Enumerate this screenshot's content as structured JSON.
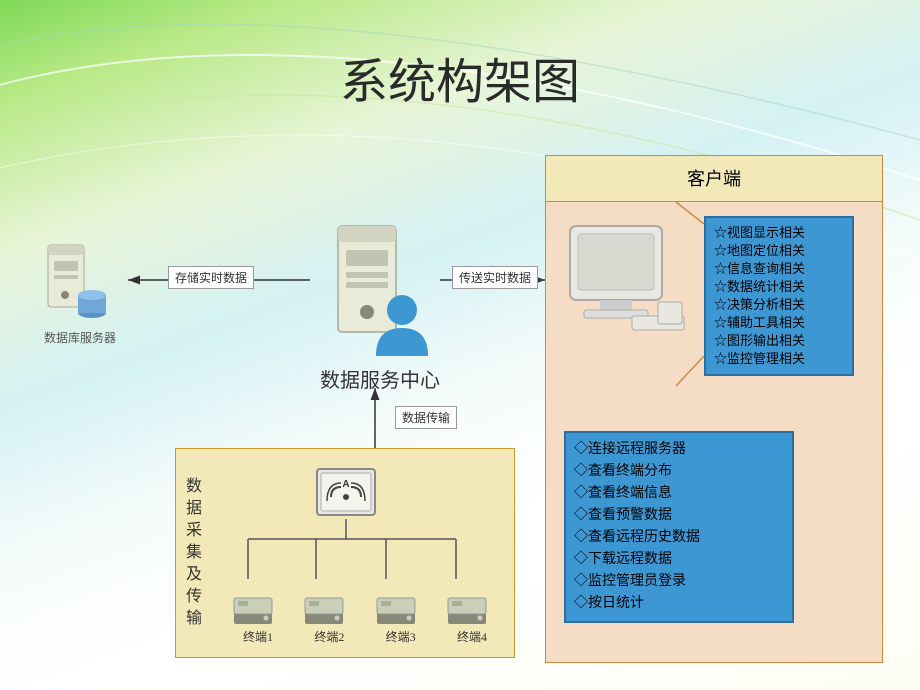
{
  "type": "network",
  "title": "系统构架图",
  "background": {
    "gradient_colors": [
      "#7ed957",
      "#b8e986",
      "#e8f5d8",
      "#d4f1f4",
      "#f5fcfa",
      "#ffffff"
    ],
    "curve_colors": [
      "#ffffff",
      "#c8e8a0",
      "#a0d8c0"
    ]
  },
  "nodes": {
    "db_server": {
      "label": "数据库服务器",
      "label_fontsize": 12
    },
    "service_center": {
      "label": "数据服务中心",
      "label_fontsize": 20
    },
    "collection_box": {
      "title": "数据采集及传输",
      "bg_color": "#f3e8b8",
      "border_color": "#c89828",
      "router_label": "A",
      "terminals": [
        "终端1",
        "终端2",
        "终端3",
        "终端4"
      ]
    },
    "client_box": {
      "title": "客户端",
      "bg_color": "#f4ddc4",
      "header_bg": "#f3e8b8",
      "border_color": "#d08840",
      "panel_a": {
        "bg_color": "#3d97d3",
        "border_color": "#2b6fa0",
        "bullet": "☆",
        "items": [
          "视图显示相关",
          "地图定位相关",
          "信息查询相关",
          "数据统计相关",
          "决策分析相关",
          "辅助工具相关",
          "图形输出相关",
          "监控管理相关"
        ]
      },
      "panel_b": {
        "bg_color": "#3d97d3",
        "border_color": "#2b6fa0",
        "bullet": "◇",
        "items": [
          "连接远程服务器",
          "查看终端分布",
          "查看终端信息",
          "查看预警数据",
          "查看远程历史数据",
          "下载远程数据",
          "监控管理员登录",
          "按日统计"
        ]
      }
    }
  },
  "edges": {
    "svc_to_db": {
      "label": "存储实时数据",
      "arrow_color": "#333333"
    },
    "svc_to_client": {
      "label": "传送实时数据",
      "arrow_color": "#333333"
    },
    "collect_to_svc": {
      "label": "数据传输",
      "arrow_color": "#333333"
    }
  },
  "icon_colors": {
    "server_body": "#e8ebd8",
    "server_shadow": "#a8a890",
    "disk": "#6fa8d8",
    "person": "#3d97d3",
    "router_bg": "#e8e8e0",
    "terminal_top": "#c8d0b8",
    "terminal_base": "#888878",
    "monitor_body": "#e8e8e0",
    "monitor_screen": "#d8d8d0"
  }
}
